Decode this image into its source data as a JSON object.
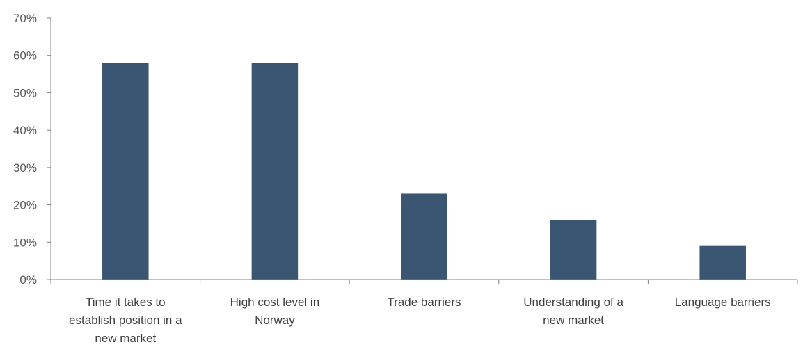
{
  "chart_data": {
    "type": "bar",
    "title": "",
    "xlabel": "",
    "ylabel": "",
    "ylim": [
      0,
      70
    ],
    "yticks": [
      "0%",
      "10%",
      "20%",
      "30%",
      "40%",
      "50%",
      "60%",
      "70%"
    ],
    "grid": false,
    "categories": [
      [
        "Time it takes to",
        "establish position in a",
        "new market"
      ],
      [
        "High cost level in",
        "Norway"
      ],
      [
        "Trade barriers"
      ],
      [
        "Understanding of a",
        "new market"
      ],
      [
        "Language barriers"
      ]
    ],
    "values": [
      58,
      58,
      23,
      16,
      9
    ],
    "bar_color": "#3b5672"
  }
}
